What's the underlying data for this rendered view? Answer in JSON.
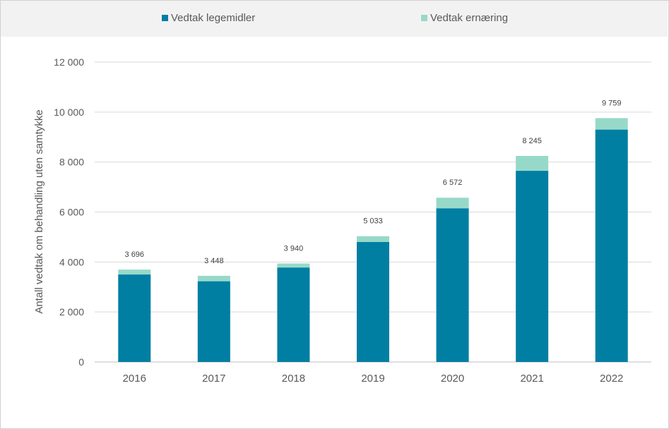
{
  "chart_data": {
    "type": "bar",
    "stacked": true,
    "categories": [
      "2016",
      "2017",
      "2018",
      "2019",
      "2020",
      "2021",
      "2022"
    ],
    "series": [
      {
        "name": "Vedtak legemidler",
        "color": "#007fa3",
        "values": [
          3500,
          3230,
          3780,
          4800,
          6150,
          7650,
          9300
        ]
      },
      {
        "name": "Vedtak ernæring",
        "color": "#97d9c9",
        "values": [
          196,
          218,
          160,
          233,
          422,
          595,
          459
        ]
      }
    ],
    "totals": [
      3696,
      3448,
      3940,
      5033,
      6572,
      8245,
      9759
    ],
    "total_labels": [
      "3 696",
      "3 448",
      "3 940",
      "5 033",
      "6 572",
      "8 245",
      "9 759"
    ],
    "ylabel": "Antall vedtak om behandling uten samtykke",
    "xlabel": "",
    "ylim": [
      0,
      12000
    ],
    "yticks": [
      0,
      2000,
      4000,
      6000,
      8000,
      10000,
      12000
    ],
    "ytick_labels": [
      "0",
      "2 000",
      "4 000",
      "6 000",
      "8 000",
      "10 000",
      "12 000"
    ],
    "grid": true,
    "legend_position": "top",
    "gridline_color": "#d9d9d9"
  }
}
